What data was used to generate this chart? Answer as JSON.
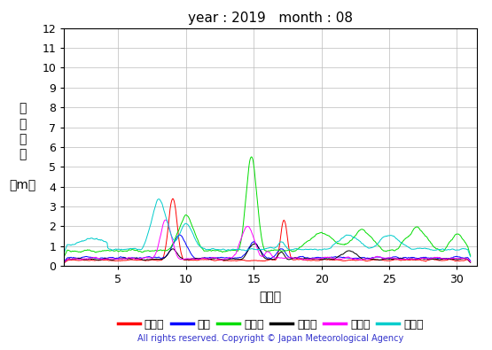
{
  "title": "year : 2019   month : 08",
  "xlabel": "（日）",
  "ylabel_lines": [
    "有",
    "義",
    "波",
    "高",
    "",
    "（m）"
  ],
  "xlim": [
    1,
    31.5
  ],
  "ylim": [
    0,
    12
  ],
  "yticks": [
    0,
    1,
    2,
    3,
    4,
    5,
    6,
    7,
    8,
    9,
    10,
    11,
    12
  ],
  "xticks": [
    5,
    10,
    15,
    20,
    25,
    30
  ],
  "copyright": "All rights reserved. Copyright © Japan Meteorological Agency",
  "legend": [
    {
      "label": "上ノ国",
      "color": "#ff0000"
    },
    {
      "label": "唐桑",
      "color": "#0000ff"
    },
    {
      "label": "石廊崎",
      "color": "#00dd00"
    },
    {
      "label": "経ヶ岬",
      "color": "#000000"
    },
    {
      "label": "生月島",
      "color": "#ff00ff"
    },
    {
      "label": "屋久島",
      "color": "#00cccc"
    }
  ],
  "background_color": "#ffffff",
  "grid_color": "#bbbbbb"
}
